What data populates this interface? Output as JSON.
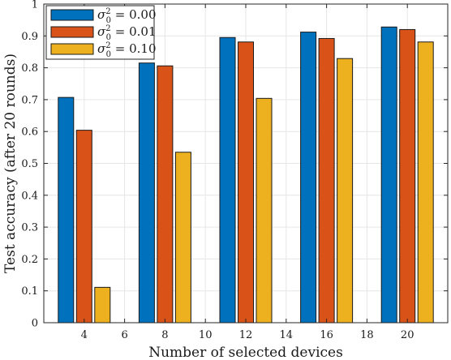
{
  "chart_data": {
    "type": "bar",
    "xlabel": "Number of selected devices",
    "ylabel": "Test accuracy (after 20 rounds)",
    "xlim": [
      2,
      22
    ],
    "ylim": [
      0,
      1
    ],
    "xticks": [
      4,
      6,
      8,
      10,
      12,
      14,
      16,
      18,
      20
    ],
    "yticks": [
      0,
      0.1,
      0.2,
      0.3,
      0.4,
      0.5,
      0.6,
      0.7,
      0.8,
      0.9,
      1
    ],
    "ytick_labels": [
      "0",
      "0.1",
      "0.2",
      "0.3",
      "0.4",
      "0.5",
      "0.6",
      "0.7",
      "0.8",
      "0.9",
      "1"
    ],
    "categories": [
      4,
      8,
      12,
      16,
      20
    ],
    "series": [
      {
        "name": "σ0² = 0.00",
        "color": "#0072BD",
        "values": [
          0.707,
          0.815,
          0.895,
          0.912,
          0.928
        ]
      },
      {
        "name": "σ0² = 0.01",
        "color": "#D95319",
        "values": [
          0.604,
          0.806,
          0.881,
          0.892,
          0.92
        ]
      },
      {
        "name": "σ0² = 0.10",
        "color": "#EDB120",
        "values": [
          0.111,
          0.535,
          0.704,
          0.829,
          0.881
        ]
      }
    ],
    "legend": {
      "placement": "top-left",
      "entries": [
        {
          "base": "σ",
          "sub": "0",
          "sup": "2",
          "rest": " = 0.00"
        },
        {
          "base": "σ",
          "sub": "0",
          "sup": "2",
          "rest": " = 0.01"
        },
        {
          "base": "σ",
          "sub": "0",
          "sup": "2",
          "rest": " = 0.10"
        }
      ]
    },
    "grid": true
  }
}
